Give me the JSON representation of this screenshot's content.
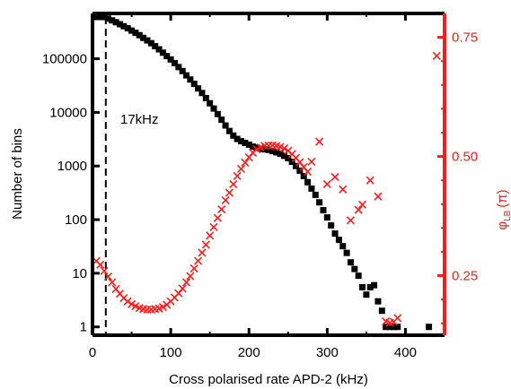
{
  "chart_data": {
    "type": "scatter",
    "title": "",
    "xlabel": "Cross polarised rate APD-2 (kHz)",
    "ylabel_left": "Number of bins",
    "ylabel_right": "φLB (π)",
    "ylabel_right_symbol": "φ",
    "ylabel_right_subscript": "LB",
    "ylabel_right_unit": "(π)",
    "xlim": [
      0,
      450
    ],
    "ylim_left": [
      0.7,
      700000
    ],
    "ylim_left_scale": "log",
    "ylim_right": [
      0.125,
      0.8
    ],
    "x_ticks": [
      0,
      100,
      200,
      300,
      400
    ],
    "x_tick_labels": [
      "0",
      "100",
      "200",
      "300",
      "400"
    ],
    "y_left_ticks": [
      1,
      10,
      100,
      1000,
      10000,
      100000
    ],
    "y_left_tick_labels": [
      "1",
      "10",
      "100",
      "1000",
      "10000",
      "100000"
    ],
    "y_right_ticks": [
      0.25,
      0.5,
      0.75
    ],
    "y_right_tick_labels": [
      "0.25",
      "0.50",
      "0.75"
    ],
    "threshold": {
      "x": 17,
      "label": "17kHz"
    },
    "colors": {
      "left_series": "#000000",
      "right_series": "#ff1a1a"
    },
    "series": [
      {
        "axis": "left",
        "marker": "square",
        "points": [
          [
            5,
            600000
          ],
          [
            10,
            600000
          ],
          [
            15,
            600000
          ],
          [
            20,
            560000
          ],
          [
            25,
            520000
          ],
          [
            30,
            480000
          ],
          [
            35,
            440000
          ],
          [
            40,
            405000
          ],
          [
            45,
            370000
          ],
          [
            50,
            335000
          ],
          [
            55,
            305000
          ],
          [
            60,
            275000
          ],
          [
            65,
            245000
          ],
          [
            70,
            220000
          ],
          [
            75,
            195000
          ],
          [
            80,
            172000
          ],
          [
            85,
            150000
          ],
          [
            90,
            130000
          ],
          [
            95,
            112000
          ],
          [
            100,
            97000
          ],
          [
            105,
            83000
          ],
          [
            110,
            70000
          ],
          [
            115,
            59000
          ],
          [
            120,
            49000
          ],
          [
            125,
            41000
          ],
          [
            130,
            34000
          ],
          [
            135,
            28000
          ],
          [
            140,
            23000
          ],
          [
            145,
            18500
          ],
          [
            150,
            14800
          ],
          [
            155,
            11800
          ],
          [
            160,
            9300
          ],
          [
            165,
            7300
          ],
          [
            170,
            5700
          ],
          [
            175,
            4500
          ],
          [
            180,
            3700
          ],
          [
            185,
            3200
          ],
          [
            190,
            2900
          ],
          [
            195,
            2700
          ],
          [
            200,
            2500
          ],
          [
            205,
            2300
          ],
          [
            210,
            2200
          ],
          [
            215,
            2100
          ],
          [
            220,
            2050
          ],
          [
            225,
            2000
          ],
          [
            230,
            1900
          ],
          [
            235,
            1800
          ],
          [
            240,
            1700
          ],
          [
            245,
            1550
          ],
          [
            250,
            1400
          ],
          [
            255,
            1200
          ],
          [
            260,
            1000
          ],
          [
            265,
            820
          ],
          [
            270,
            650
          ],
          [
            275,
            500
          ],
          [
            280,
            380
          ],
          [
            285,
            290
          ],
          [
            290,
            210
          ],
          [
            295,
            150
          ],
          [
            300,
            110
          ],
          [
            305,
            78
          ],
          [
            310,
            55
          ],
          [
            315,
            42
          ],
          [
            320,
            32
          ],
          [
            325,
            24
          ],
          [
            330,
            16
          ],
          [
            335,
            12
          ],
          [
            340,
            9
          ],
          [
            345,
            5.5
          ],
          [
            350,
            4
          ],
          [
            355,
            5.5
          ],
          [
            360,
            6
          ],
          [
            365,
            3
          ],
          [
            370,
            2
          ],
          [
            375,
            1
          ],
          [
            380,
            1
          ],
          [
            385,
            1
          ],
          [
            390,
            1
          ],
          [
            430,
            1
          ]
        ]
      },
      {
        "axis": "right",
        "marker": "x",
        "points": [
          [
            5,
            0.281
          ],
          [
            10,
            0.273
          ],
          [
            15,
            0.26
          ],
          [
            20,
            0.248
          ],
          [
            25,
            0.236
          ],
          [
            30,
            0.222
          ],
          [
            35,
            0.212
          ],
          [
            40,
            0.203
          ],
          [
            45,
            0.196
          ],
          [
            50,
            0.19
          ],
          [
            55,
            0.186
          ],
          [
            60,
            0.182
          ],
          [
            65,
            0.18
          ],
          [
            70,
            0.179
          ],
          [
            75,
            0.179
          ],
          [
            80,
            0.18
          ],
          [
            85,
            0.181
          ],
          [
            90,
            0.184
          ],
          [
            95,
            0.189
          ],
          [
            100,
            0.196
          ],
          [
            105,
            0.204
          ],
          [
            110,
            0.213
          ],
          [
            115,
            0.223
          ],
          [
            120,
            0.236
          ],
          [
            125,
            0.249
          ],
          [
            130,
            0.265
          ],
          [
            135,
            0.281
          ],
          [
            140,
            0.298
          ],
          [
            145,
            0.315
          ],
          [
            150,
            0.334
          ],
          [
            155,
            0.352
          ],
          [
            160,
            0.371
          ],
          [
            165,
            0.389
          ],
          [
            170,
            0.408
          ],
          [
            175,
            0.424
          ],
          [
            180,
            0.442
          ],
          [
            185,
            0.459
          ],
          [
            190,
            0.474
          ],
          [
            195,
            0.487
          ],
          [
            200,
            0.498
          ],
          [
            205,
            0.508
          ],
          [
            210,
            0.515
          ],
          [
            215,
            0.519
          ],
          [
            220,
            0.522
          ],
          [
            225,
            0.523
          ],
          [
            230,
            0.523
          ],
          [
            235,
            0.522
          ],
          [
            240,
            0.52
          ],
          [
            245,
            0.517
          ],
          [
            250,
            0.512
          ],
          [
            255,
            0.505
          ],
          [
            260,
            0.497
          ],
          [
            265,
            0.488
          ],
          [
            270,
            0.478
          ],
          [
            275,
            0.468
          ],
          [
            280,
            0.489
          ],
          [
            290,
            0.531
          ],
          [
            300,
            0.442
          ],
          [
            310,
            0.457
          ],
          [
            320,
            0.431
          ],
          [
            330,
            0.366
          ],
          [
            340,
            0.388
          ],
          [
            345,
            0.399
          ],
          [
            355,
            0.45
          ],
          [
            365,
            0.416
          ],
          [
            375,
            0.154
          ],
          [
            380,
            0.151
          ],
          [
            385,
            0.153
          ],
          [
            390,
            0.161
          ],
          [
            440,
            0.711
          ]
        ]
      }
    ]
  }
}
